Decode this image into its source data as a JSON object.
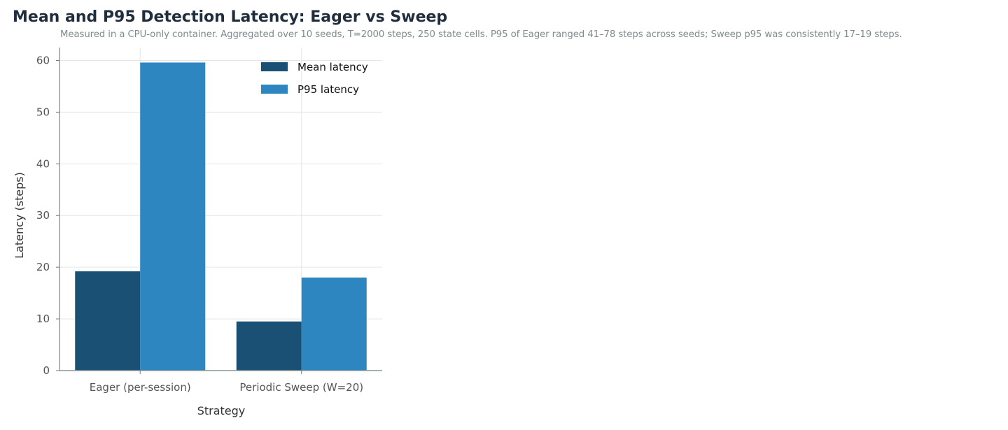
{
  "chart_data": {
    "type": "bar",
    "title": "Mean and P95 Detection Latency: Eager vs Sweep",
    "subtitle": "Measured in a CPU-only container. Aggregated over 10 seeds, T=2000 steps, 250 state cells. P95 of Eager ranged 41–78 steps across seeds; Sweep p95 was consistently 17–19 steps.",
    "xlabel": "Strategy",
    "ylabel": "Latency (steps)",
    "categories": [
      "Eager (per-session)",
      "Periodic Sweep (W=20)"
    ],
    "series": [
      {
        "name": "Mean latency",
        "values": [
          19.2,
          9.5
        ],
        "color": "#1a5073"
      },
      {
        "name": "P95 latency",
        "values": [
          59.6,
          18.0
        ],
        "color": "#2e86c1"
      }
    ],
    "ylim": [
      0,
      62.5
    ],
    "yticks": [
      0,
      10,
      20,
      30,
      40,
      50,
      60
    ],
    "grid": true,
    "legend_position": "top-right"
  }
}
